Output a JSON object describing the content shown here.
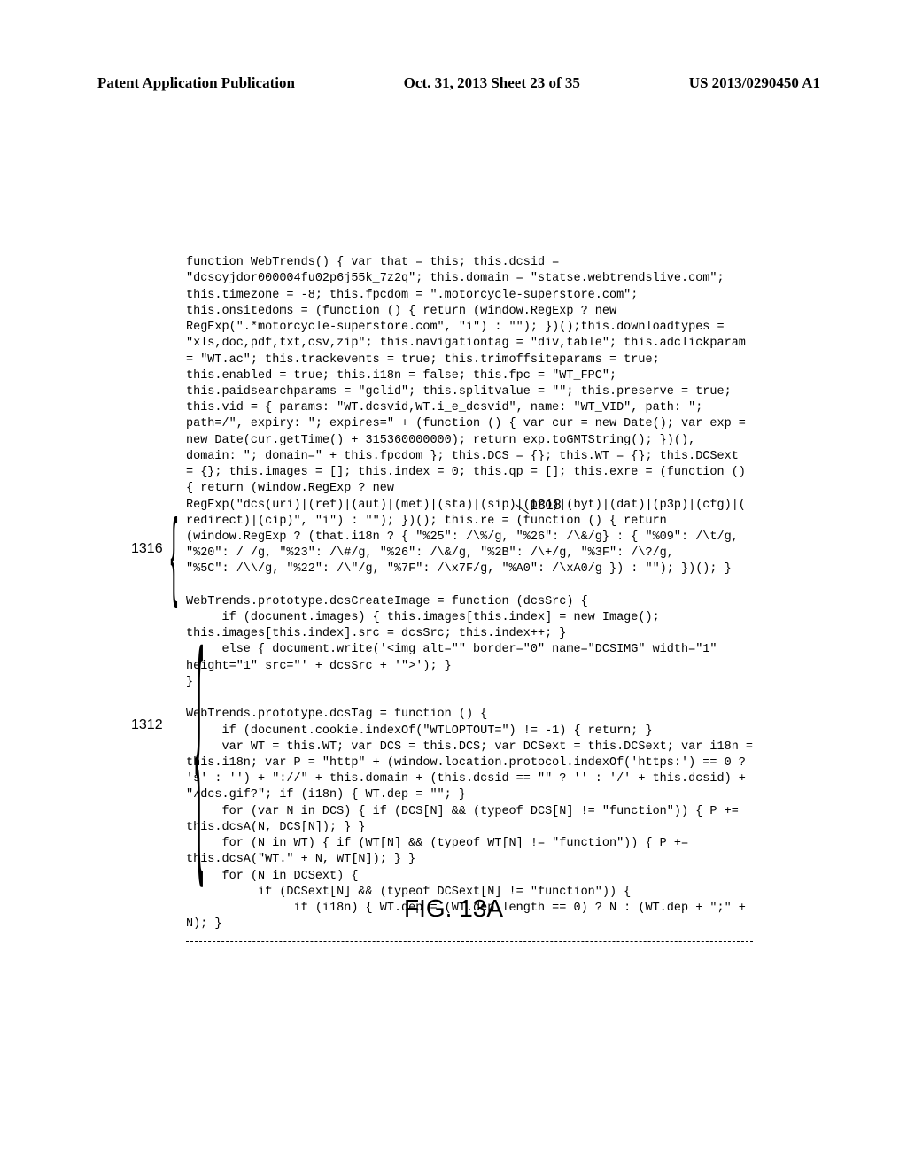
{
  "header": {
    "left": "Patent Application Publication",
    "center": "Oct. 31, 2013  Sheet 23 of 35",
    "right": "US 2013/0290450 A1"
  },
  "refs": {
    "r1318": "1318",
    "r1316": "1316",
    "r1312": "1312"
  },
  "figure_label": "FIG. 13A",
  "code": {
    "block1": "function WebTrends() { var that = this; this.dcsid =\n\"dcscyjdor000004fu02p6j55k_7z2q\"; this.domain = \"statse.webtrendslive.com\";\nthis.timezone = -8; this.fpcdom = \".motorcycle-superstore.com\";\nthis.onsitedoms = (function () { return (window.RegExp ? new\nRegExp(\".*motorcycle-superstore.com\", \"i\") : \"\"); })();this.downloadtypes =\n\"xls,doc,pdf,txt,csv,zip\"; this.navigationtag = \"div,table\"; this.adclickparam\n= \"WT.ac\"; this.trackevents = true; this.trimoffsiteparams = true;\nthis.enabled = true; this.i18n = false; this.fpc = \"WT_FPC\";\nthis.paidsearchparams = \"gclid\"; this.splitvalue = \"\"; this.preserve = true;\nthis.vid = { params: \"WT.dcsvid,WT.i_e_dcsvid\", name: \"WT_VID\", path: \";\npath=/\", expiry: \"; expires=\" + (function () { var cur = new Date(); var exp =\nnew Date(cur.getTime() + 315360000000); return exp.toGMTString(); })(),\ndomain: \"; domain=\" + this.fpcdom }; this.DCS = {}; this.WT = {}; this.DCSext\n= {}; this.images = []; this.index = 0; this.qp = []; this.exre = (function ()\n{ return (window.RegExp ? new\nRegExp(\"dcs(uri)|(ref)|(aut)|(met)|(sta)|(sip)|(pro)|(byt)|(dat)|(p3p)|(cfg)|(\nredirect)|(cip)\", \"i\") : \"\"); })(); this.re = (function () { return\n(window.RegExp ? (that.i18n ? { \"%25\": /\\%/g, \"%26\": /\\&/g} : { \"%09\": /\\t/g,\n\"%20\": / /g, \"%23\": /\\#/g, \"%26\": /\\&/g, \"%2B\": /\\+/g, \"%3F\": /\\?/g,\n\"%5C\": /\\\\/g, \"%22\": /\\\"/g, \"%7F\": /\\x7F/g, \"%A0\": /\\xA0/g }) : \"\"); })(); }",
    "block2": "WebTrends.prototype.dcsCreateImage = function (dcsSrc) {\n     if (document.images) { this.images[this.index] = new Image();\nthis.images[this.index].src = dcsSrc; this.index++; }\n     else { document.write('<img alt=\"\" border=\"0\" name=\"DCSIMG\" width=\"1\"\nheight=\"1\" src=\"' + dcsSrc + '\">'); }\n}",
    "block3": "WebTrends.prototype.dcsTag = function () {\n     if (document.cookie.indexOf(\"WTLOPTOUT=\") != -1) { return; }\n     var WT = this.WT; var DCS = this.DCS; var DCSext = this.DCSext; var i18n =\nthis.i18n; var P = \"http\" + (window.location.protocol.indexOf('https:') == 0 ?\n's' : '') + \"://\" + this.domain + (this.dcsid == \"\" ? '' : '/' + this.dcsid) +\n\"/dcs.gif?\"; if (i18n) { WT.dep = \"\"; }\n     for (var N in DCS) { if (DCS[N] && (typeof DCS[N] != \"function\")) { P +=\nthis.dcsA(N, DCS[N]); } }\n     for (N in WT) { if (WT[N] && (typeof WT[N] != \"function\")) { P +=\nthis.dcsA(\"WT.\" + N, WT[N]); } }\n     for (N in DCSext) {\n          if (DCSext[N] && (typeof DCSext[N] != \"function\")) {\n               if (i18n) { WT.dep = (WT.dep.length == 0) ? N : (WT.dep + \";\" +\nN); }"
  }
}
